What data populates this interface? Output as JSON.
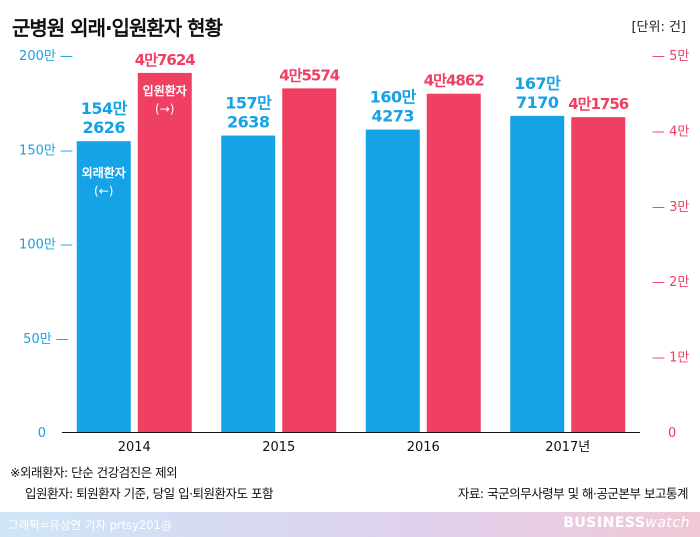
{
  "header": {
    "title": "군병원 외래·입원환자 현황",
    "unit": "[단위: 건]"
  },
  "notes": {
    "line1": "※외래환자: 단순 건강검진은 제외",
    "line2": "입원환자: 퇴원환자 기준, 당일 입·퇴원환자도 포함",
    "source": "자료: 국군의무사령부 및 해·공군본부 보고통계"
  },
  "footer": {
    "credit": "그래픽=유상연 기자 prtsy201@",
    "brand_bold": "BUSINESS",
    "brand_light": "watch"
  },
  "chart_data": {
    "type": "bar",
    "title": "군병원 외래·입원환자 현황",
    "categories": [
      "2014",
      "2015",
      "2016",
      "2017년"
    ],
    "series": [
      {
        "name": "외래환자 (←)",
        "axis": "left",
        "color": "#16a2e6",
        "values": [
          1542626,
          1572638,
          1604273,
          1677170
        ],
        "labels": [
          [
            "154만",
            "2626"
          ],
          [
            "157만",
            "2638"
          ],
          [
            "160만",
            "4273"
          ],
          [
            "167만",
            "7170"
          ]
        ]
      },
      {
        "name": "입원환자 (→)",
        "axis": "right",
        "color": "#ef3f62",
        "values": [
          47624,
          45574,
          44862,
          41756
        ],
        "labels": [
          [
            "4만7624"
          ],
          [
            "4만5574"
          ],
          [
            "4만4862"
          ],
          [
            "4만1756"
          ]
        ]
      }
    ],
    "left_axis": {
      "min": 0,
      "max": 2000000,
      "ticks": [
        0,
        500000,
        1000000,
        1500000,
        2000000
      ],
      "tick_labels": [
        "0",
        "50만 —",
        "100만 —",
        "150만 —",
        "200만 —"
      ],
      "color": "#16a2e6"
    },
    "right_axis": {
      "min": 0,
      "max": 50000,
      "ticks": [
        0,
        10000,
        20000,
        30000,
        40000,
        50000
      ],
      "tick_labels": [
        "0",
        "— 1만",
        "— 2만",
        "— 3만",
        "— 4만",
        "— 5만"
      ],
      "color": "#ef3f62"
    },
    "series_legend_labels": [
      [
        "외래환자",
        "(←)"
      ],
      [
        "입원환자",
        "(→)"
      ]
    ],
    "grid": false
  }
}
